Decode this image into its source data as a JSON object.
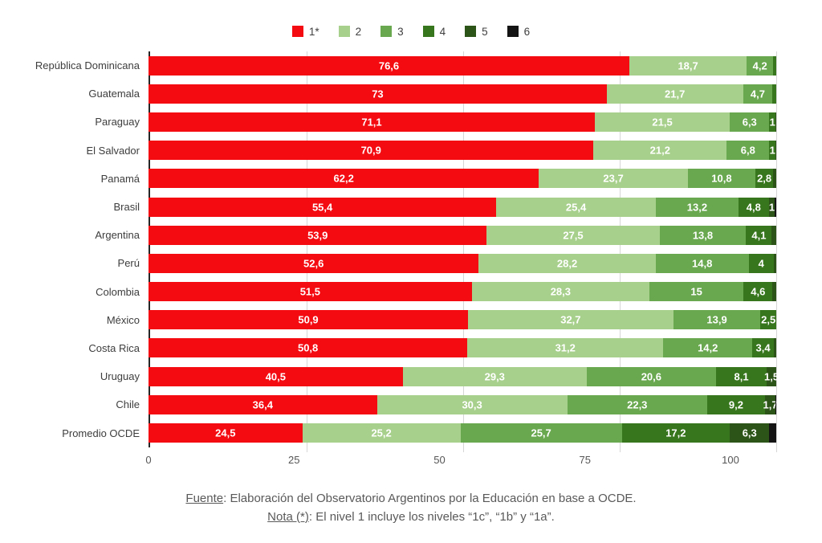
{
  "chart_data": {
    "type": "bar",
    "variant": "horizontal-stacked",
    "stack_total": 100,
    "grid": "vertical-light",
    "legend_position": "top-center",
    "legend": [
      {
        "label": "1*",
        "color": "#f40b12"
      },
      {
        "label": "2",
        "color": "#a8d08d"
      },
      {
        "label": "3",
        "color": "#6aa84f"
      },
      {
        "label": "4",
        "color": "#38761d"
      },
      {
        "label": "5",
        "color": "#2d5418"
      },
      {
        "label": "6",
        "color": "#141414"
      }
    ],
    "x_axis": {
      "min": 0,
      "max": 100,
      "ticks": [
        0,
        25,
        50,
        75,
        100
      ]
    },
    "rows": [
      {
        "category": "República Dominicana",
        "segments": [
          {
            "level": "1*",
            "value": 76.6,
            "label": "76,6"
          },
          {
            "level": "2",
            "value": 18.7,
            "label": "18,7"
          },
          {
            "level": "3",
            "value": 4.2,
            "label": "4,2"
          },
          {
            "level": "4",
            "value": 0.5,
            "label": ""
          }
        ]
      },
      {
        "category": "Guatemala",
        "segments": [
          {
            "level": "1*",
            "value": 73,
            "label": "73"
          },
          {
            "level": "2",
            "value": 21.7,
            "label": "21,7"
          },
          {
            "level": "3",
            "value": 4.7,
            "label": "4,7"
          },
          {
            "level": "4",
            "value": 0.6,
            "label": ""
          }
        ]
      },
      {
        "category": "Paraguay",
        "segments": [
          {
            "level": "1*",
            "value": 71.1,
            "label": "71,1"
          },
          {
            "level": "2",
            "value": 21.5,
            "label": "21,5"
          },
          {
            "level": "3",
            "value": 6.3,
            "label": "6,3"
          },
          {
            "level": "4",
            "value": 1,
            "label": "1"
          },
          {
            "level": "5",
            "value": 0.1,
            "label": ""
          }
        ]
      },
      {
        "category": "El Salvador",
        "segments": [
          {
            "level": "1*",
            "value": 70.9,
            "label": "70,9"
          },
          {
            "level": "2",
            "value": 21.2,
            "label": "21,2"
          },
          {
            "level": "3",
            "value": 6.8,
            "label": "6,8"
          },
          {
            "level": "4",
            "value": 1,
            "label": "1"
          },
          {
            "level": "5",
            "value": 0.1,
            "label": ""
          }
        ]
      },
      {
        "category": "Panamá",
        "segments": [
          {
            "level": "1*",
            "value": 62.2,
            "label": "62,2"
          },
          {
            "level": "2",
            "value": 23.7,
            "label": "23,7"
          },
          {
            "level": "3",
            "value": 10.8,
            "label": "10,8"
          },
          {
            "level": "4",
            "value": 2.8,
            "label": "2,8"
          },
          {
            "level": "5",
            "value": 0.5,
            "label": ""
          }
        ]
      },
      {
        "category": "Brasil",
        "segments": [
          {
            "level": "1*",
            "value": 55.4,
            "label": "55,4"
          },
          {
            "level": "2",
            "value": 25.4,
            "label": "25,4"
          },
          {
            "level": "3",
            "value": 13.2,
            "label": "13,2"
          },
          {
            "level": "4",
            "value": 4.8,
            "label": "4,8"
          },
          {
            "level": "5",
            "value": 1,
            "label": "1"
          },
          {
            "level": "6",
            "value": 0.2,
            "label": ""
          }
        ]
      },
      {
        "category": "Argentina",
        "segments": [
          {
            "level": "1*",
            "value": 53.9,
            "label": "53,9"
          },
          {
            "level": "2",
            "value": 27.5,
            "label": "27,5"
          },
          {
            "level": "3",
            "value": 13.8,
            "label": "13,8"
          },
          {
            "level": "4",
            "value": 4.1,
            "label": "4,1"
          },
          {
            "level": "5",
            "value": 0.7,
            "label": ""
          }
        ]
      },
      {
        "category": "Perú",
        "segments": [
          {
            "level": "1*",
            "value": 52.6,
            "label": "52,6"
          },
          {
            "level": "2",
            "value": 28.2,
            "label": "28,2"
          },
          {
            "level": "3",
            "value": 14.8,
            "label": "14,8"
          },
          {
            "level": "4",
            "value": 4,
            "label": "4"
          },
          {
            "level": "5",
            "value": 0.4,
            "label": ""
          }
        ]
      },
      {
        "category": "Colombia",
        "segments": [
          {
            "level": "1*",
            "value": 51.5,
            "label": "51,5"
          },
          {
            "level": "2",
            "value": 28.3,
            "label": "28,3"
          },
          {
            "level": "3",
            "value": 15,
            "label": "15"
          },
          {
            "level": "4",
            "value": 4.6,
            "label": "4,6"
          },
          {
            "level": "5",
            "value": 0.6,
            "label": ""
          }
        ]
      },
      {
        "category": "México",
        "segments": [
          {
            "level": "1*",
            "value": 50.9,
            "label": "50,9"
          },
          {
            "level": "2",
            "value": 32.7,
            "label": "32,7"
          },
          {
            "level": "3",
            "value": 13.9,
            "label": "13,9"
          },
          {
            "level": "4",
            "value": 2.5,
            "label": "2,5"
          }
        ]
      },
      {
        "category": "Costa Rica",
        "segments": [
          {
            "level": "1*",
            "value": 50.8,
            "label": "50,8"
          },
          {
            "level": "2",
            "value": 31.2,
            "label": "31,2"
          },
          {
            "level": "3",
            "value": 14.2,
            "label": "14,2"
          },
          {
            "level": "4",
            "value": 3.4,
            "label": "3,4"
          },
          {
            "level": "5",
            "value": 0.4,
            "label": ""
          }
        ]
      },
      {
        "category": "Uruguay",
        "segments": [
          {
            "level": "1*",
            "value": 40.5,
            "label": "40,5"
          },
          {
            "level": "2",
            "value": 29.3,
            "label": "29,3"
          },
          {
            "level": "3",
            "value": 20.6,
            "label": "20,6"
          },
          {
            "level": "4",
            "value": 8.1,
            "label": "8,1"
          },
          {
            "level": "5",
            "value": 1.5,
            "label": "1,5"
          }
        ]
      },
      {
        "category": "Chile",
        "segments": [
          {
            "level": "1*",
            "value": 36.4,
            "label": "36,4"
          },
          {
            "level": "2",
            "value": 30.3,
            "label": "30,3"
          },
          {
            "level": "3",
            "value": 22.3,
            "label": "22,3"
          },
          {
            "level": "4",
            "value": 9.2,
            "label": "9,2"
          },
          {
            "level": "5",
            "value": 1.7,
            "label": "1,7"
          },
          {
            "level": "6",
            "value": 0.1,
            "label": ""
          }
        ]
      },
      {
        "category": "Promedio OCDE",
        "segments": [
          {
            "level": "1*",
            "value": 24.5,
            "label": "24,5"
          },
          {
            "level": "2",
            "value": 25.2,
            "label": "25,2"
          },
          {
            "level": "3",
            "value": 25.7,
            "label": "25,7"
          },
          {
            "level": "4",
            "value": 17.2,
            "label": "17,2"
          },
          {
            "level": "5",
            "value": 6.3,
            "label": "6,3"
          },
          {
            "level": "6",
            "value": 1.1,
            "label": ""
          }
        ]
      }
    ]
  },
  "footer": {
    "source_label": "Fuente",
    "source_text": ": Elaboración del Observatorio Argentinos por la Educación en base a OCDE.",
    "note_label": "Nota (*)",
    "note_text": ": El nivel 1 incluye los niveles “1c”, “1b” y “1a”."
  }
}
